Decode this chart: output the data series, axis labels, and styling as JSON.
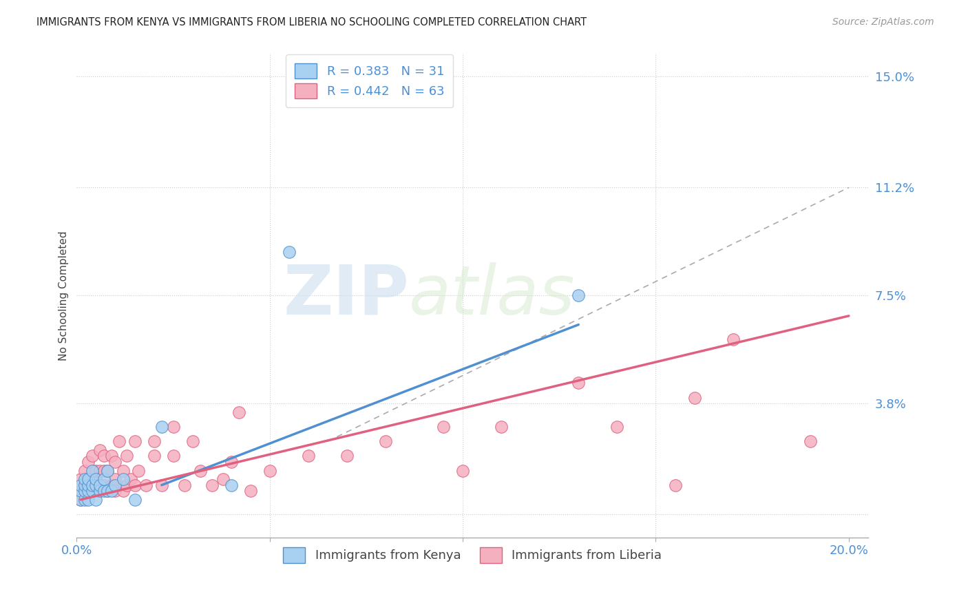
{
  "title": "IMMIGRANTS FROM KENYA VS IMMIGRANTS FROM LIBERIA NO SCHOOLING COMPLETED CORRELATION CHART",
  "source": "Source: ZipAtlas.com",
  "ylabel": "No Schooling Completed",
  "xlim": [
    0.0,
    0.205
  ],
  "ylim": [
    -0.008,
    0.158
  ],
  "ytick_positions": [
    0.0,
    0.038,
    0.075,
    0.112,
    0.15
  ],
  "ytick_labels": [
    "",
    "3.8%",
    "7.5%",
    "11.2%",
    "15.0%"
  ],
  "kenya_color": "#A8D0F0",
  "kenya_edge_color": "#5090D0",
  "liberia_color": "#F5B0C0",
  "liberia_edge_color": "#E06080",
  "kenya_R": 0.383,
  "kenya_N": 31,
  "liberia_R": 0.442,
  "liberia_N": 63,
  "background_color": "#FFFFFF",
  "grid_color": "#CCCCCC",
  "watermark_zip": "ZIP",
  "watermark_atlas": "atlas",
  "kenya_line_x": [
    0.022,
    0.13
  ],
  "kenya_line_y": [
    0.01,
    0.065
  ],
  "liberia_line_x": [
    0.001,
    0.2
  ],
  "liberia_line_y": [
    0.005,
    0.068
  ],
  "diag_line_x": [
    0.065,
    0.2
  ],
  "diag_line_y": [
    0.025,
    0.112
  ],
  "kenya_scatter_x": [
    0.001,
    0.001,
    0.001,
    0.002,
    0.002,
    0.002,
    0.002,
    0.003,
    0.003,
    0.003,
    0.003,
    0.004,
    0.004,
    0.004,
    0.005,
    0.005,
    0.005,
    0.006,
    0.006,
    0.007,
    0.007,
    0.008,
    0.008,
    0.009,
    0.01,
    0.012,
    0.015,
    0.022,
    0.04,
    0.055,
    0.13
  ],
  "kenya_scatter_y": [
    0.005,
    0.008,
    0.01,
    0.005,
    0.008,
    0.01,
    0.012,
    0.005,
    0.008,
    0.01,
    0.012,
    0.008,
    0.01,
    0.015,
    0.005,
    0.01,
    0.012,
    0.008,
    0.01,
    0.008,
    0.012,
    0.008,
    0.015,
    0.008,
    0.01,
    0.012,
    0.005,
    0.03,
    0.01,
    0.09,
    0.075
  ],
  "liberia_scatter_x": [
    0.001,
    0.001,
    0.001,
    0.002,
    0.002,
    0.002,
    0.003,
    0.003,
    0.003,
    0.004,
    0.004,
    0.005,
    0.005,
    0.005,
    0.006,
    0.006,
    0.006,
    0.007,
    0.007,
    0.007,
    0.008,
    0.008,
    0.009,
    0.009,
    0.01,
    0.01,
    0.01,
    0.011,
    0.012,
    0.012,
    0.013,
    0.013,
    0.014,
    0.015,
    0.015,
    0.016,
    0.018,
    0.02,
    0.02,
    0.022,
    0.025,
    0.025,
    0.028,
    0.03,
    0.032,
    0.035,
    0.038,
    0.04,
    0.042,
    0.045,
    0.05,
    0.06,
    0.07,
    0.08,
    0.095,
    0.1,
    0.11,
    0.13,
    0.14,
    0.155,
    0.16,
    0.17,
    0.19
  ],
  "liberia_scatter_y": [
    0.005,
    0.008,
    0.012,
    0.008,
    0.01,
    0.015,
    0.008,
    0.012,
    0.018,
    0.01,
    0.02,
    0.008,
    0.012,
    0.015,
    0.008,
    0.015,
    0.022,
    0.01,
    0.015,
    0.02,
    0.008,
    0.015,
    0.01,
    0.02,
    0.008,
    0.012,
    0.018,
    0.025,
    0.008,
    0.015,
    0.01,
    0.02,
    0.012,
    0.01,
    0.025,
    0.015,
    0.01,
    0.02,
    0.025,
    0.01,
    0.02,
    0.03,
    0.01,
    0.025,
    0.015,
    0.01,
    0.012,
    0.018,
    0.035,
    0.008,
    0.015,
    0.02,
    0.02,
    0.025,
    0.03,
    0.015,
    0.03,
    0.045,
    0.03,
    0.01,
    0.04,
    0.06,
    0.025
  ]
}
